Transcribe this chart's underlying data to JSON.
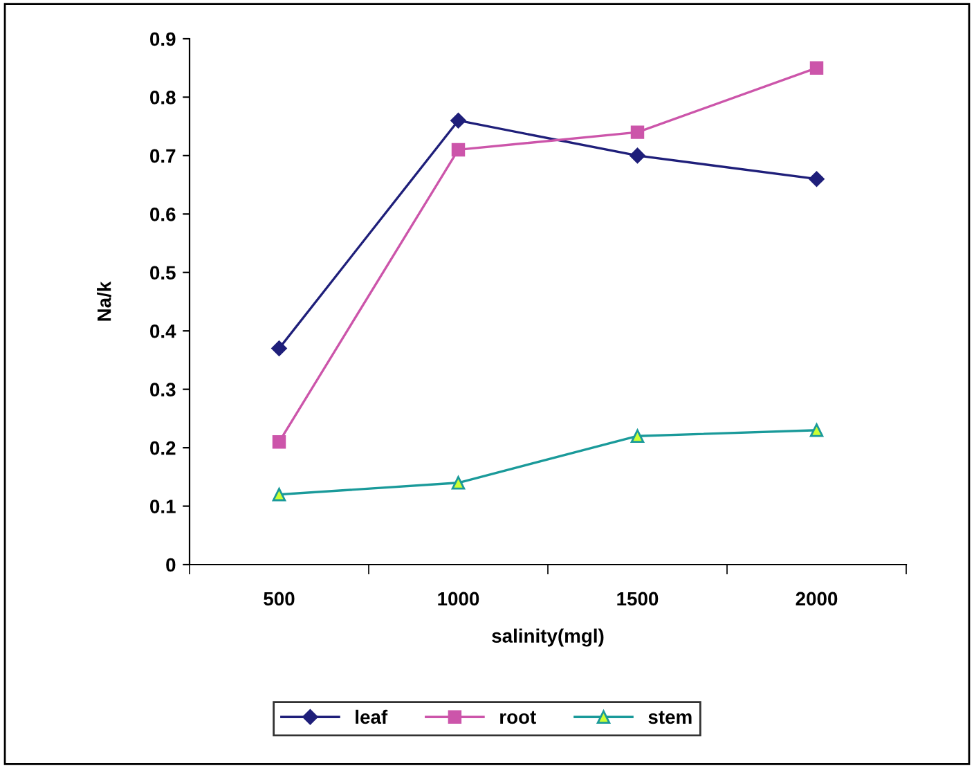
{
  "chart_data": {
    "type": "line",
    "xlabel": "salinity(mgl)",
    "ylabel": "Na/k",
    "categories": [
      "500",
      "1000",
      "1500",
      "2000"
    ],
    "series": [
      {
        "name": "leaf",
        "color": "#1f1f7a",
        "marker": "diamond",
        "values": [
          0.37,
          0.76,
          0.7,
          0.66
        ]
      },
      {
        "name": "root",
        "color": "#cc55aa",
        "marker": "square",
        "values": [
          0.21,
          0.71,
          0.74,
          0.85
        ]
      },
      {
        "name": "stem",
        "color": "#1a9a9a",
        "marker": "triangle",
        "values": [
          0.12,
          0.14,
          0.22,
          0.23
        ]
      }
    ],
    "ylim": [
      0,
      0.9
    ],
    "yticks": [
      {
        "value": 0,
        "label": "0"
      },
      0.1,
      0.2,
      0.3,
      0.4,
      0.5,
      0.6,
      0.7,
      0.8,
      0.9
    ],
    "grid": false,
    "legend": "bottom",
    "line_style": "solid"
  }
}
